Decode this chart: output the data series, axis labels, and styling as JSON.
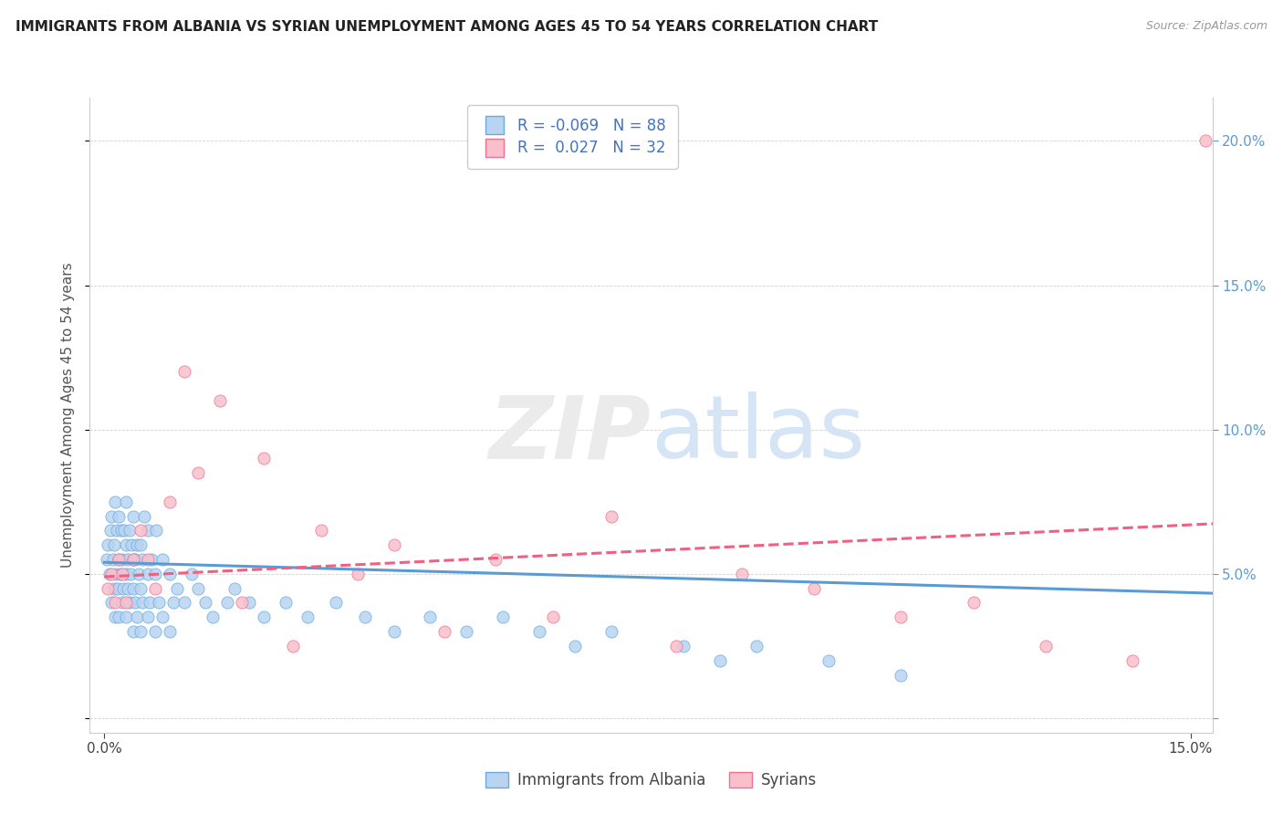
{
  "title": "IMMIGRANTS FROM ALBANIA VS SYRIAN UNEMPLOYMENT AMONG AGES 45 TO 54 YEARS CORRELATION CHART",
  "source": "Source: ZipAtlas.com",
  "ylabel": "Unemployment Among Ages 45 to 54 years",
  "xlim": [
    -0.002,
    0.153
  ],
  "ylim": [
    -0.005,
    0.215
  ],
  "x_ticks": [
    0.0,
    0.05,
    0.1,
    0.15
  ],
  "x_tick_labels": [
    "0.0%",
    "",
    "",
    "15.0%"
  ],
  "y_ticks": [
    0.05,
    0.1,
    0.15,
    0.2
  ],
  "y_tick_labels": [
    "5.0%",
    "10.0%",
    "15.0%",
    "20.0%"
  ],
  "albania_R": -0.069,
  "albania_N": 88,
  "syria_R": 0.027,
  "syria_N": 32,
  "albania_fill": "#b8d4f0",
  "albania_edge": "#6aaae0",
  "syria_fill": "#f9c0cc",
  "syria_edge": "#f07090",
  "albania_line": "#5b9bd5",
  "syria_line": "#f06080",
  "legend_albania": "Immigrants from Albania",
  "legend_syria": "Syrians",
  "albania_x": [
    0.0003,
    0.0005,
    0.0007,
    0.0008,
    0.001,
    0.001,
    0.0012,
    0.0013,
    0.0014,
    0.0015,
    0.0015,
    0.0016,
    0.0017,
    0.0018,
    0.002,
    0.002,
    0.002,
    0.0022,
    0.0023,
    0.0025,
    0.0025,
    0.0026,
    0.0027,
    0.003,
    0.003,
    0.003,
    0.003,
    0.0032,
    0.0033,
    0.0035,
    0.0035,
    0.0036,
    0.0038,
    0.004,
    0.004,
    0.004,
    0.004,
    0.0042,
    0.0043,
    0.0045,
    0.0045,
    0.0047,
    0.005,
    0.005,
    0.005,
    0.0052,
    0.0053,
    0.0055,
    0.006,
    0.006,
    0.006,
    0.0062,
    0.0065,
    0.007,
    0.007,
    0.0072,
    0.0075,
    0.008,
    0.008,
    0.009,
    0.009,
    0.0095,
    0.01,
    0.011,
    0.012,
    0.013,
    0.014,
    0.015,
    0.017,
    0.018,
    0.02,
    0.022,
    0.025,
    0.028,
    0.032,
    0.036,
    0.04,
    0.045,
    0.05,
    0.055,
    0.06,
    0.065,
    0.07,
    0.08,
    0.085,
    0.09,
    0.1,
    0.11
  ],
  "albania_y": [
    0.055,
    0.06,
    0.05,
    0.065,
    0.04,
    0.07,
    0.055,
    0.045,
    0.06,
    0.035,
    0.075,
    0.05,
    0.065,
    0.045,
    0.035,
    0.055,
    0.07,
    0.05,
    0.065,
    0.04,
    0.055,
    0.045,
    0.065,
    0.035,
    0.05,
    0.06,
    0.075,
    0.045,
    0.055,
    0.04,
    0.065,
    0.05,
    0.06,
    0.03,
    0.045,
    0.055,
    0.07,
    0.04,
    0.055,
    0.035,
    0.06,
    0.05,
    0.03,
    0.045,
    0.06,
    0.04,
    0.055,
    0.07,
    0.035,
    0.05,
    0.065,
    0.04,
    0.055,
    0.03,
    0.05,
    0.065,
    0.04,
    0.035,
    0.055,
    0.03,
    0.05,
    0.04,
    0.045,
    0.04,
    0.05,
    0.045,
    0.04,
    0.035,
    0.04,
    0.045,
    0.04,
    0.035,
    0.04,
    0.035,
    0.04,
    0.035,
    0.03,
    0.035,
    0.03,
    0.035,
    0.03,
    0.025,
    0.03,
    0.025,
    0.02,
    0.025,
    0.02,
    0.015
  ],
  "syria_x": [
    0.0005,
    0.001,
    0.0015,
    0.002,
    0.0025,
    0.003,
    0.004,
    0.005,
    0.006,
    0.007,
    0.009,
    0.011,
    0.013,
    0.016,
    0.019,
    0.022,
    0.026,
    0.03,
    0.035,
    0.04,
    0.047,
    0.054,
    0.062,
    0.07,
    0.079,
    0.088,
    0.098,
    0.11,
    0.12,
    0.13,
    0.142,
    0.152
  ],
  "syria_y": [
    0.045,
    0.05,
    0.04,
    0.055,
    0.05,
    0.04,
    0.055,
    0.065,
    0.055,
    0.045,
    0.075,
    0.12,
    0.085,
    0.11,
    0.04,
    0.09,
    0.025,
    0.065,
    0.05,
    0.06,
    0.03,
    0.055,
    0.035,
    0.07,
    0.025,
    0.05,
    0.045,
    0.035,
    0.04,
    0.025,
    0.02,
    0.2
  ]
}
